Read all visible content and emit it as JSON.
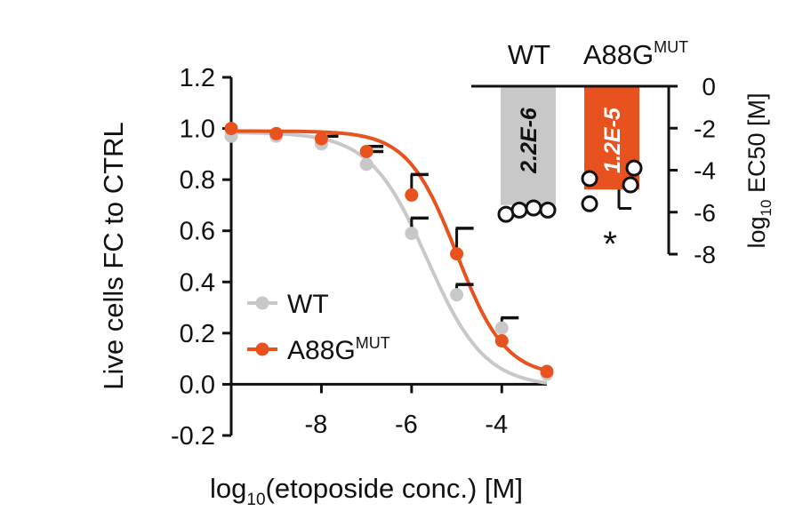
{
  "colors": {
    "wt": "#c8c8c8",
    "mut": "#e8521f",
    "axis": "#111111",
    "marker_fill": "#ffffff"
  },
  "chart_data": [
    {
      "type": "line",
      "xlabel": "log10(etoposide conc.) [M]",
      "xlabel_parts": {
        "prefix": "log",
        "sub": "10",
        "rest": "(etoposide conc.) [M]"
      },
      "ylabel": "Live cells FC to CTRL",
      "xlim": [
        -10,
        -3
      ],
      "ylim": [
        -0.2,
        1.2
      ],
      "xticks": [
        -8,
        -6,
        -4
      ],
      "xtick_labels": [
        "-8",
        "-6",
        "-4"
      ],
      "yticks": [
        -0.2,
        0.0,
        0.2,
        0.4,
        0.6,
        0.8,
        1.0,
        1.2
      ],
      "ytick_labels": [
        "-0.2",
        "0.0",
        "0.2",
        "0.4",
        "0.6",
        "0.8",
        "1.0",
        "1.2"
      ],
      "legend_position": "lower-left",
      "series": [
        {
          "name": "WT",
          "name_parts": {
            "main": "WT",
            "sup": ""
          },
          "color": "#c8c8c8",
          "x": [
            -10,
            -9,
            -8,
            -7,
            -6,
            -5,
            -4,
            -3
          ],
          "y": [
            0.97,
            0.97,
            0.94,
            0.86,
            0.59,
            0.35,
            0.22,
            0.04
          ],
          "error": [
            0,
            0,
            0.03,
            0.05,
            0.06,
            0.04,
            0.04,
            0
          ],
          "fit": {
            "top": 0.985,
            "bottom": -0.01,
            "logEC50": -5.65,
            "hill": 0.68
          }
        },
        {
          "name": "A88GMUT",
          "name_parts": {
            "main": "A88G",
            "sup": "MUT"
          },
          "color": "#e8521f",
          "x": [
            -10,
            -9,
            -8,
            -7,
            -6,
            -5,
            -4,
            -3
          ],
          "y": [
            1.0,
            0.98,
            0.96,
            0.91,
            0.74,
            0.51,
            0.17,
            0.05
          ],
          "error": [
            0,
            0,
            0.01,
            0.02,
            0.08,
            0.1,
            0,
            0
          ],
          "fit": {
            "top": 0.99,
            "bottom": 0.03,
            "logEC50": -5.0,
            "hill": 0.8
          }
        }
      ]
    },
    {
      "type": "bar",
      "categories": [
        "WT",
        "A88GMUT"
      ],
      "category_parts": [
        {
          "main": "WT",
          "sup": ""
        },
        {
          "main": "A88G",
          "sup": "MUT"
        }
      ],
      "values": [
        -5.66,
        -4.92
      ],
      "bar_labels": [
        "2.2E-6",
        "1.2E-5"
      ],
      "ylabel": "log10 EC50 [M]",
      "ylabel_parts": {
        "prefix": "log",
        "sub": "10",
        "rest": " EC50 [M]"
      },
      "ylim": [
        -8,
        0
      ],
      "yticks": [
        0,
        -2,
        -4,
        -6,
        -8
      ],
      "ytick_labels": [
        "0",
        "-2",
        "-4",
        "-6",
        "-8"
      ],
      "points": [
        [
          -6.1,
          -5.9,
          -5.8,
          -5.9
        ],
        [
          -4.4,
          -5.6,
          -4.7,
          -3.9
        ]
      ],
      "error": [
        0,
        0.9
      ],
      "annotation": "*"
    }
  ]
}
